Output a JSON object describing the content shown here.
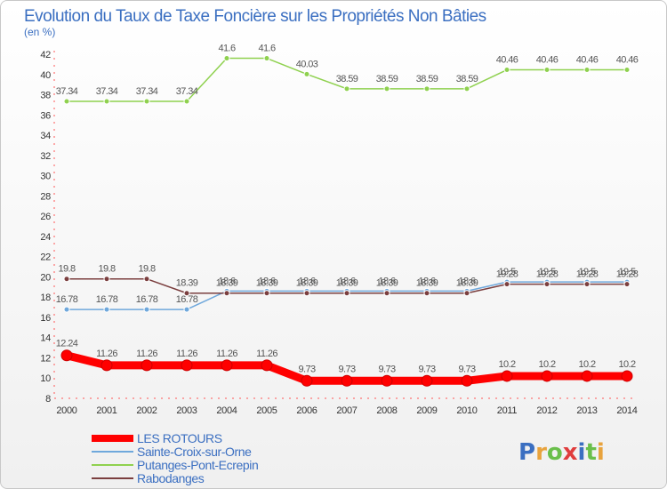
{
  "chart_data": {
    "type": "line",
    "title": "Evolution du Taux de Taxe Foncière sur les Propriétés Non Bâties",
    "subtitle": "(en %)",
    "x": [
      2000,
      2001,
      2002,
      2003,
      2004,
      2005,
      2006,
      2007,
      2008,
      2009,
      2010,
      2011,
      2012,
      2013,
      2014
    ],
    "ylim": [
      8,
      42
    ],
    "yticks": [
      8,
      10,
      12,
      14,
      16,
      18,
      20,
      22,
      24,
      26,
      28,
      30,
      32,
      34,
      36,
      38,
      40,
      42
    ],
    "grid": false,
    "legend_position": "bottom-left",
    "series": [
      {
        "name": "LES ROTOURS",
        "color": "#ff0000",
        "values": [
          12.24,
          11.26,
          11.26,
          11.26,
          11.26,
          11.26,
          9.73,
          9.73,
          9.73,
          9.73,
          9.73,
          10.2,
          10.2,
          10.2,
          10.2
        ],
        "labels": [
          "12.24",
          "11.26",
          "11.26",
          "11.26",
          "11.26",
          "11.26",
          "9.73",
          "9.73",
          "9.73",
          "9.73",
          "9.73",
          "10.2",
          "10.2",
          "10.2",
          "10.2"
        ]
      },
      {
        "name": "Sainte-Croix-sur-Orne",
        "color": "#6fa8dc",
        "values": [
          16.78,
          16.78,
          16.78,
          16.78,
          18.6,
          18.6,
          18.6,
          18.6,
          18.6,
          18.6,
          18.6,
          19.5,
          19.5,
          19.5,
          19.5
        ],
        "labels": [
          "16.78",
          "16.78",
          "16.78",
          "16.78",
          "18.6",
          "18.6",
          "18.6",
          "18.6",
          "18.6",
          "18.6",
          "18.6",
          "19.5",
          "19.5",
          "19.5",
          "19.5"
        ]
      },
      {
        "name": "Putanges-Pont-Ecrepin",
        "color": "#8fd14f",
        "values": [
          37.34,
          37.34,
          37.34,
          37.34,
          41.6,
          41.6,
          40.03,
          38.59,
          38.59,
          38.59,
          38.59,
          40.46,
          40.46,
          40.46,
          40.46
        ],
        "labels": [
          "37.34",
          "37.34",
          "37.34",
          "37.34",
          "41.6",
          "41.6",
          "40.03",
          "38.59",
          "38.59",
          "38.59",
          "38.59",
          "40.46",
          "40.46",
          "40.46",
          "40.46"
        ]
      },
      {
        "name": "Rabodanges",
        "color": "#7b3f3f",
        "values": [
          19.8,
          19.8,
          19.8,
          18.39,
          18.39,
          18.39,
          18.39,
          18.39,
          18.39,
          18.39,
          18.39,
          19.28,
          19.28,
          19.28,
          19.28
        ],
        "labels": [
          "19.8",
          "19.8",
          "19.8",
          "18.39",
          "18.39",
          "18.39",
          "18.39",
          "18.39",
          "18.39",
          "18.39",
          "18.39",
          "19.28",
          "19.28",
          "19.28",
          "19.28"
        ]
      }
    ]
  },
  "brand": {
    "letters": [
      "P",
      "r",
      "o",
      "x",
      "i",
      "t",
      "i"
    ],
    "colors": [
      "#3b6fc1",
      "#e8a33d",
      "#6abf4b",
      "#e03d3d",
      "#3b6fc1",
      "#6abf4b",
      "#e8a33d"
    ]
  }
}
